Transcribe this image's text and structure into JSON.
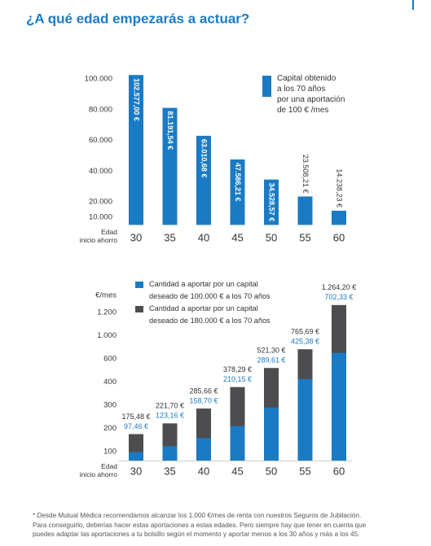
{
  "title": "¿A qué edad empezarás a actuar?",
  "footnote": "* Desde Mutual Médica recomendamos alcanzar los 1.000 €/mes de renta con nuestros Seguros de Jubilación.\nPara conseguirlo, deberías hacer estas aportaciones a estas edades. Pero siempre hay que tener en cuenta que\npuedes adaptar las aportaciones a tu bolsillo según el momento y aportar menos a los 30 años y más a los 45.",
  "chart_data": [
    {
      "type": "bar",
      "x_label": "Edad\ninicio ahorro",
      "categories": [
        "30",
        "35",
        "40",
        "45",
        "50",
        "55",
        "60"
      ],
      "series": [
        {
          "name": "Capital obtenido\na los 70 años\npor una aportación\nde 100 € /mes",
          "color": "#1a7bc4",
          "values": [
            102577,
            81191.54,
            63010.68,
            47586.21,
            34528.57,
            23508.21,
            14238.23
          ],
          "value_labels": [
            "102.577,00 €",
            "81.191,54 €",
            "63.010,68 €",
            "47.586,21 €",
            "34.528,57 €",
            "23.508,21 €",
            "14.238,23 €"
          ]
        }
      ],
      "ylim": [
        5000,
        105000
      ],
      "yticks": [
        {
          "value": 10000,
          "label": "10.000"
        },
        {
          "value": 20000,
          "label": "20.000"
        },
        {
          "value": 40000,
          "label": "40.000"
        },
        {
          "value": 60000,
          "label": "60.000"
        },
        {
          "value": 80000,
          "label": "80.000"
        },
        {
          "value": 100000,
          "label": "100.000"
        }
      ],
      "grid": false
    },
    {
      "type": "overlapped_bar",
      "y_label": "€/mes",
      "x_label": "Edad\ninicio ahorro",
      "categories": [
        "30",
        "35",
        "40",
        "45",
        "50",
        "55",
        "60"
      ],
      "series": [
        {
          "name": "Cantidad a aportar por un capital\ndeseado de 180.000 € a los 70 años",
          "color": "#4d4d4f",
          "values": [
            175.48,
            221.7,
            285.66,
            378.29,
            521.3,
            765.69,
            1264.2
          ],
          "value_labels": [
            "175,48 €",
            "221,70 €",
            "285,66 €",
            "378,29 €",
            "521,30 €",
            "765,69 €",
            "1.264,20 €"
          ]
        },
        {
          "name": "Cantidad a aportar por un capital\ndeseado de 100.000 € a los 70 años",
          "color": "#1a7bc4",
          "values": [
            97.46,
            123.16,
            158.7,
            210.15,
            289.61,
            425.38,
            702.33
          ],
          "value_labels": [
            "97,46 €",
            "123,16 €",
            "158,70 €",
            "210,15 €",
            "289,61 €",
            "425,38 €",
            "702,33 €"
          ]
        }
      ],
      "ylim": [
        60,
        1300
      ],
      "yticks": [
        100,
        200,
        300,
        400,
        600,
        {
          "value": 1000,
          "label": "1.000"
        },
        {
          "value": 1200,
          "label": "1.200"
        }
      ],
      "scale": "ordinal-spaced",
      "grid": false
    }
  ]
}
